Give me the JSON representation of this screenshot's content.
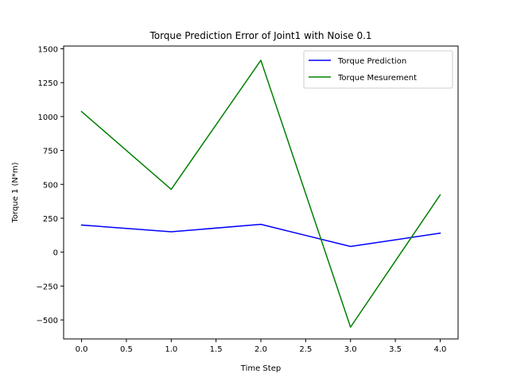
{
  "chart_data": {
    "type": "line",
    "title": "Torque Prediction Error of Joint1 with Noise 0.1",
    "xlabel": "Time Step",
    "ylabel": "Torque 1 (N*m)",
    "x": [
      0,
      1,
      2,
      3,
      4
    ],
    "xlim": [
      -0.2,
      4.2
    ],
    "ylim": [
      -640,
      1520
    ],
    "xticks": [
      0.0,
      0.5,
      1.0,
      1.5,
      2.0,
      2.5,
      3.0,
      3.5,
      4.0
    ],
    "xtick_labels": [
      "0.0",
      "0.5",
      "1.0",
      "1.5",
      "2.0",
      "2.5",
      "3.0",
      "3.5",
      "4.0"
    ],
    "yticks": [
      -500,
      -250,
      0,
      250,
      500,
      750,
      1000,
      1250,
      1500
    ],
    "ytick_labels": [
      "−500",
      "−250",
      "0",
      "250",
      "500",
      "750",
      "1000",
      "1250",
      "1500"
    ],
    "grid": false,
    "legend_position": "top-right",
    "series": [
      {
        "name": "Torque Prediction",
        "color": "#0000ff",
        "values": [
          200,
          150,
          205,
          42,
          140
        ]
      },
      {
        "name": "Torque Mesurement",
        "color": "#008000",
        "values": [
          1037,
          463,
          1415,
          -553,
          422
        ]
      }
    ]
  }
}
